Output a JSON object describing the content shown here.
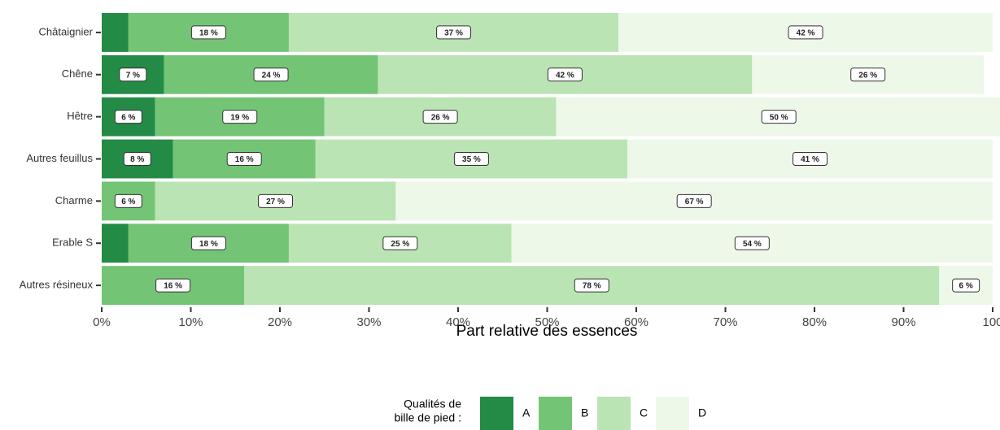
{
  "chart_data": {
    "type": "stacked_barh",
    "categories": [
      "Châtaignier",
      "Chêne",
      "Hêtre",
      "Autres feuillus",
      "Charme",
      "Erable S",
      "Autres résineux"
    ],
    "series": [
      {
        "name": "A",
        "color": "#238b45",
        "values": [
          3,
          7,
          6,
          8,
          0,
          3,
          0
        ],
        "value_labels": [
          null,
          "7 %",
          "6 %",
          "8 %",
          null,
          null,
          null
        ]
      },
      {
        "name": "B",
        "color": "#74c476",
        "values": [
          18,
          24,
          19,
          16,
          6,
          18,
          16
        ],
        "value_labels": [
          "18 %",
          "24 %",
          "19 %",
          "16 %",
          "6 %",
          "18 %",
          "16 %"
        ]
      },
      {
        "name": "C",
        "color": "#bae4b3",
        "values": [
          37,
          42,
          26,
          35,
          27,
          25,
          78
        ],
        "value_labels": [
          "37 %",
          "42 %",
          "26 %",
          "35 %",
          "27 %",
          "25 %",
          "78 %"
        ]
      },
      {
        "name": "D",
        "color": "#edf8e9",
        "values": [
          42,
          26,
          50,
          41,
          67,
          54,
          6
        ],
        "value_labels": [
          "42 %",
          "26 %",
          "50 %",
          "41 %",
          "67 %",
          "54 %",
          "6 %"
        ]
      }
    ],
    "xlim": [
      0,
      100
    ],
    "xticks": [
      {
        "value": 0,
        "label": "0%"
      },
      {
        "value": 10,
        "label": "10%"
      },
      {
        "value": 20,
        "label": "20%"
      },
      {
        "value": 30,
        "label": "30%"
      },
      {
        "value": 40,
        "label": "40%"
      },
      {
        "value": 50,
        "label": "50%"
      },
      {
        "value": 60,
        "label": "60%"
      },
      {
        "value": 70,
        "label": "70%"
      },
      {
        "value": 80,
        "label": "80%"
      },
      {
        "value": 90,
        "label": "90%"
      },
      {
        "value": 100,
        "label": "100"
      }
    ],
    "xlabel": "Part relative des essences",
    "legend_title": [
      "Qualités de",
      "bille de pied :"
    ],
    "legend_position": "bottom"
  }
}
